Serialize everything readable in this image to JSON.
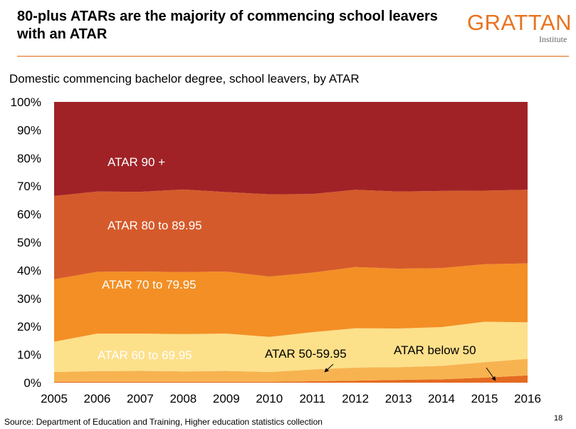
{
  "header": {
    "title": "80-plus ATARs are the majority of commencing school leavers with an ATAR",
    "logo_main": "GRATTAN",
    "logo_sub": "Institute",
    "logo_color": "#e8731f"
  },
  "footer": {
    "source": "Source: Department of Education and Training, Higher education statistics collection",
    "page_number": "18"
  },
  "chart_data": {
    "type": "area",
    "stacked": true,
    "title": "Domestic commencing bachelor degree, school leavers, by ATAR",
    "x": [
      2005,
      2006,
      2007,
      2008,
      2009,
      2010,
      2011,
      2012,
      2013,
      2014,
      2015,
      2016
    ],
    "ylim": [
      0,
      100
    ],
    "yticks": [
      "0%",
      "10%",
      "20%",
      "30%",
      "40%",
      "50%",
      "60%",
      "70%",
      "80%",
      "90%",
      "100%"
    ],
    "xticks": [
      "2005",
      "2006",
      "2007",
      "2008",
      "2009",
      "2010",
      "2011",
      "2012",
      "2013",
      "2014",
      "2015",
      "2016"
    ],
    "series": [
      {
        "name": "ATAR below 50",
        "label": "ATAR below 50",
        "color": "#e46a21",
        "values": [
          0.3,
          0.3,
          0.3,
          0.3,
          0.3,
          0.3,
          0.5,
          0.7,
          1.0,
          1.2,
          1.8,
          2.6
        ]
      },
      {
        "name": "ATAR 50-59.95",
        "label": "ATAR 50-59.95",
        "color": "#f7b350",
        "values": [
          3.5,
          3.8,
          3.9,
          3.7,
          3.9,
          3.5,
          4.2,
          4.7,
          4.5,
          4.8,
          5.5,
          5.9
        ]
      },
      {
        "name": "ATAR 60 to 69.95",
        "label": "ATAR 60 to 69.95",
        "color": "#fde08a",
        "values": [
          10.8,
          13.4,
          13.3,
          13.3,
          13.3,
          12.5,
          13.3,
          14.0,
          13.8,
          13.8,
          14.4,
          13.0
        ]
      },
      {
        "name": "ATAR 70 to 79.95",
        "label": "ATAR 70 to 79.95",
        "color": "#f38f25",
        "values": [
          22.2,
          22.0,
          22.1,
          22.1,
          22.1,
          21.5,
          21.2,
          21.8,
          21.3,
          21.0,
          20.5,
          21.0
        ]
      },
      {
        "name": "ATAR 80 to 89.95",
        "label": "ATAR  80 to 89.95",
        "color": "#d55a2b",
        "values": [
          29.7,
          28.6,
          28.4,
          29.4,
          28.3,
          29.3,
          28.0,
          27.5,
          27.5,
          27.5,
          26.2,
          26.2
        ]
      },
      {
        "name": "ATAR 90 +",
        "label": "ATAR 90 +",
        "color": "#a02226",
        "values": [
          33.5,
          31.9,
          32.0,
          31.2,
          32.1,
          32.9,
          32.8,
          31.3,
          31.9,
          31.7,
          31.6,
          31.3
        ]
      }
    ]
  }
}
